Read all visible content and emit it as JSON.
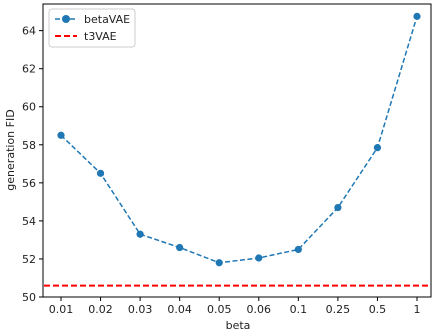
{
  "chart_data": {
    "type": "line",
    "categories": [
      "0.01",
      "0.02",
      "0.03",
      "0.04",
      "0.05",
      "0.06",
      "0.1",
      "0.25",
      "0.5",
      "1"
    ],
    "series": [
      {
        "name": "betaVAE",
        "values": [
          58.5,
          56.5,
          53.3,
          52.6,
          51.8,
          52.05,
          52.5,
          54.7,
          57.85,
          64.75
        ],
        "color": "#1f77b4",
        "line_style": "dashed",
        "marker": "circle"
      }
    ],
    "reference_lines": [
      {
        "name": "t3VAE",
        "y": 50.6,
        "color": "#ff0000",
        "line_style": "dashed"
      }
    ],
    "xlabel": "beta",
    "ylabel": "generation FID",
    "ylim": [
      50,
      65.4
    ],
    "yticks": [
      50,
      52,
      54,
      56,
      58,
      60,
      62,
      64
    ],
    "grid": false,
    "legend_position": "top-left"
  }
}
